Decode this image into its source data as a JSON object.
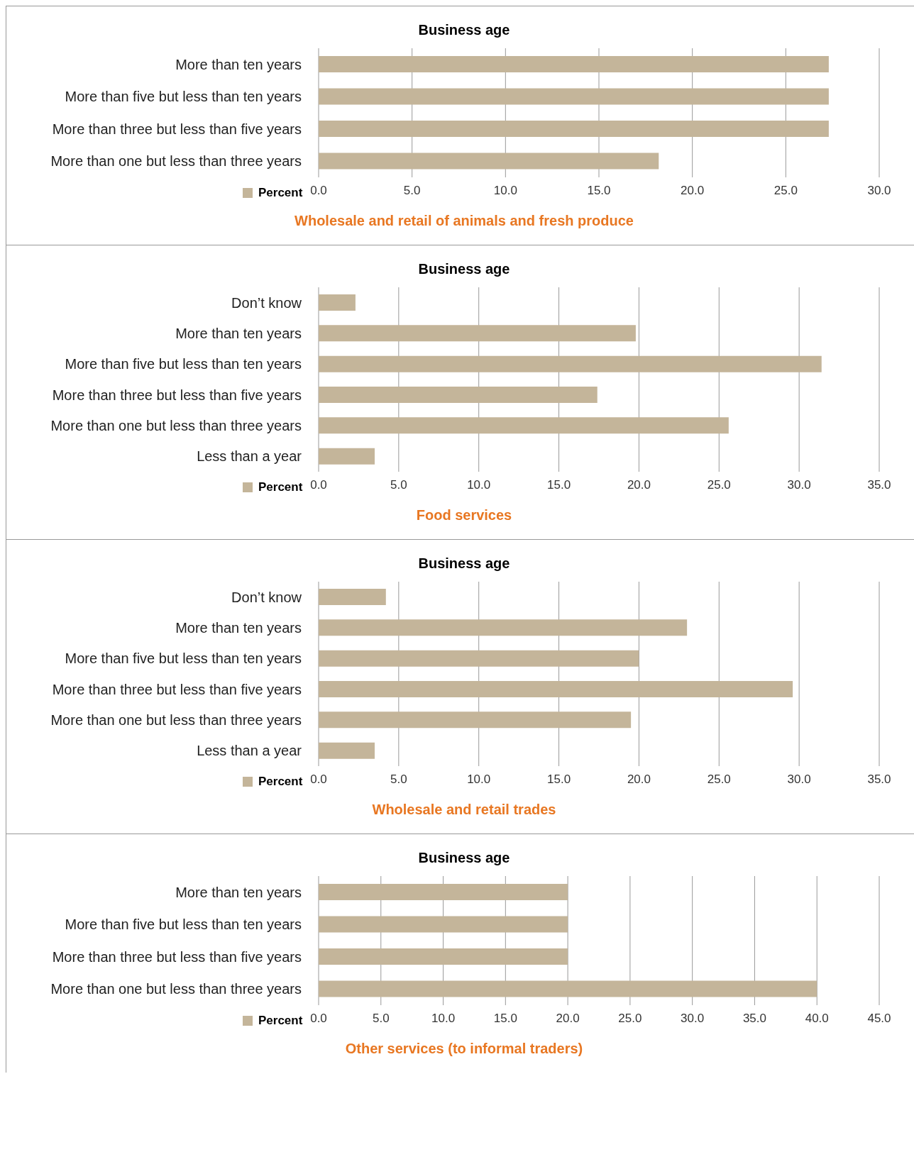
{
  "chart_data": [
    {
      "type": "bar",
      "orientation": "horizontal",
      "title": "Business age",
      "subtitle": "Wholesale and retail of animals and fresh produce",
      "categories": [
        "More than ten years",
        "More than five but less than ten years",
        "More than three but less than five years",
        "More than one but less than three years"
      ],
      "series": [
        {
          "name": "Percent",
          "color": "#c4b59a",
          "values": [
            27.3,
            27.3,
            27.3,
            18.2
          ]
        }
      ],
      "xlim": [
        0,
        30
      ],
      "xticks": [
        {
          "value": 0,
          "label": "0.0"
        },
        {
          "value": 5,
          "label": "5.0"
        },
        {
          "value": 10,
          "label": "10.0"
        },
        {
          "value": 15,
          "label": "15.0"
        },
        {
          "value": 20,
          "label": "20.0"
        },
        {
          "value": 25,
          "label": "25.0"
        },
        {
          "value": 30,
          "label": "30.0"
        }
      ],
      "grid": "x",
      "legend": "bottom left"
    },
    {
      "type": "bar",
      "orientation": "horizontal",
      "title": "Business age",
      "subtitle": "Food services",
      "categories": [
        "Don’t know",
        "More than ten years",
        "More than five but less than ten years",
        "More than three but less than five years",
        "More than one but less than three years",
        "Less than a year"
      ],
      "series": [
        {
          "name": "Percent",
          "color": "#c4b59a",
          "values": [
            2.3,
            19.8,
            31.4,
            17.4,
            25.6,
            3.5
          ]
        }
      ],
      "xlim": [
        0,
        35
      ],
      "xticks": [
        {
          "value": 0,
          "label": "0.0"
        },
        {
          "value": 5,
          "label": "5.0"
        },
        {
          "value": 10,
          "label": "10.0"
        },
        {
          "value": 15,
          "label": "15.0"
        },
        {
          "value": 20,
          "label": "20.0"
        },
        {
          "value": 25,
          "label": "25.0"
        },
        {
          "value": 30,
          "label": "30.0"
        },
        {
          "value": 35,
          "label": "35.0"
        }
      ],
      "grid": "x",
      "legend": "bottom left"
    },
    {
      "type": "bar",
      "orientation": "horizontal",
      "title": "Business age",
      "subtitle": "Wholesale and retail trades",
      "categories": [
        "Don’t know",
        "More than ten years",
        "More than five but less than ten years",
        "More than three but less than five years",
        "More than one but less than three years",
        "Less than a year"
      ],
      "series": [
        {
          "name": "Percent",
          "color": "#c4b59a",
          "values": [
            4.2,
            23.0,
            20.0,
            29.6,
            19.5,
            3.5
          ]
        }
      ],
      "xlim": [
        0,
        35
      ],
      "xticks": [
        {
          "value": 0,
          "label": "0.0"
        },
        {
          "value": 5,
          "label": "5.0"
        },
        {
          "value": 10,
          "label": "10.0"
        },
        {
          "value": 15,
          "label": "15.0"
        },
        {
          "value": 20,
          "label": "20.0"
        },
        {
          "value": 25,
          "label": "25.0"
        },
        {
          "value": 30,
          "label": "30.0"
        },
        {
          "value": 35,
          "label": "35.0"
        }
      ],
      "grid": "x",
      "legend": "bottom left"
    },
    {
      "type": "bar",
      "orientation": "horizontal",
      "title": "Business age",
      "subtitle": "Other services (to informal traders)",
      "categories": [
        "More than ten years",
        "More than five but less than ten years",
        "More than three but less than five years",
        "More than one but less than three years"
      ],
      "series": [
        {
          "name": "Percent",
          "color": "#c4b59a",
          "values": [
            20.0,
            20.0,
            20.0,
            40.0
          ]
        }
      ],
      "xlim": [
        0,
        45
      ],
      "xticks": [
        {
          "value": 0,
          "label": "0.0"
        },
        {
          "value": 5,
          "label": "5.0"
        },
        {
          "value": 10,
          "label": "10.0"
        },
        {
          "value": 15,
          "label": "15.0"
        },
        {
          "value": 20,
          "label": "20.0"
        },
        {
          "value": 25,
          "label": "25.0"
        },
        {
          "value": 30,
          "label": "30.0"
        },
        {
          "value": 35,
          "label": "35.0"
        },
        {
          "value": 40,
          "label": "40.0"
        },
        {
          "value": 45,
          "label": "45.0"
        }
      ],
      "grid": "x",
      "legend": "bottom left"
    }
  ]
}
